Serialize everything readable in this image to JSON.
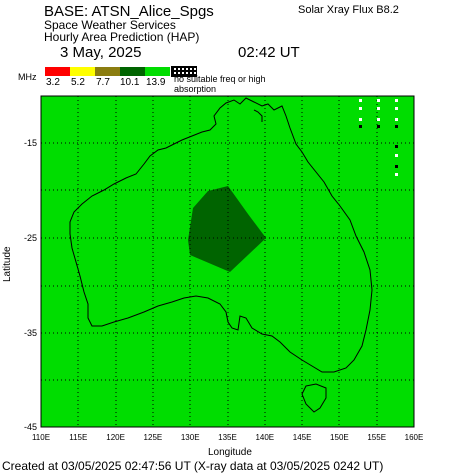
{
  "header": {
    "base": "BASE: ATSN_Alice_Spgs",
    "service": "Space Weather Services",
    "product": "Hourly Area Prediction (HAP)",
    "date": "3 May, 2025",
    "time": "02:42 UT",
    "flux": "Solar Xray Flux B8.2"
  },
  "legend": {
    "unit": "MHz",
    "ticks": [
      "3.2",
      "5.2",
      "7.7",
      "10.1",
      "13.9"
    ],
    "colors": [
      "#ff0000",
      "#ffff00",
      "#8b7d10",
      "#006400",
      "#00dd00"
    ],
    "note": "no suitable freq or high absorption"
  },
  "map": {
    "land_color": "#00dd00",
    "core_color": "#006400",
    "lat_labels": [
      "-15",
      "-25",
      "-35",
      "-45"
    ],
    "lon_labels": [
      "110E",
      "115E",
      "120E",
      "125E",
      "130E",
      "135E",
      "140E",
      "145E",
      "150E",
      "155E",
      "160E"
    ],
    "x_axis": "Longitude",
    "y_axis": "Latitude"
  },
  "footer": "Created at 03/05/2025 02:47:56 UT (X-ray data at 03/05/2025 0242 UT)"
}
